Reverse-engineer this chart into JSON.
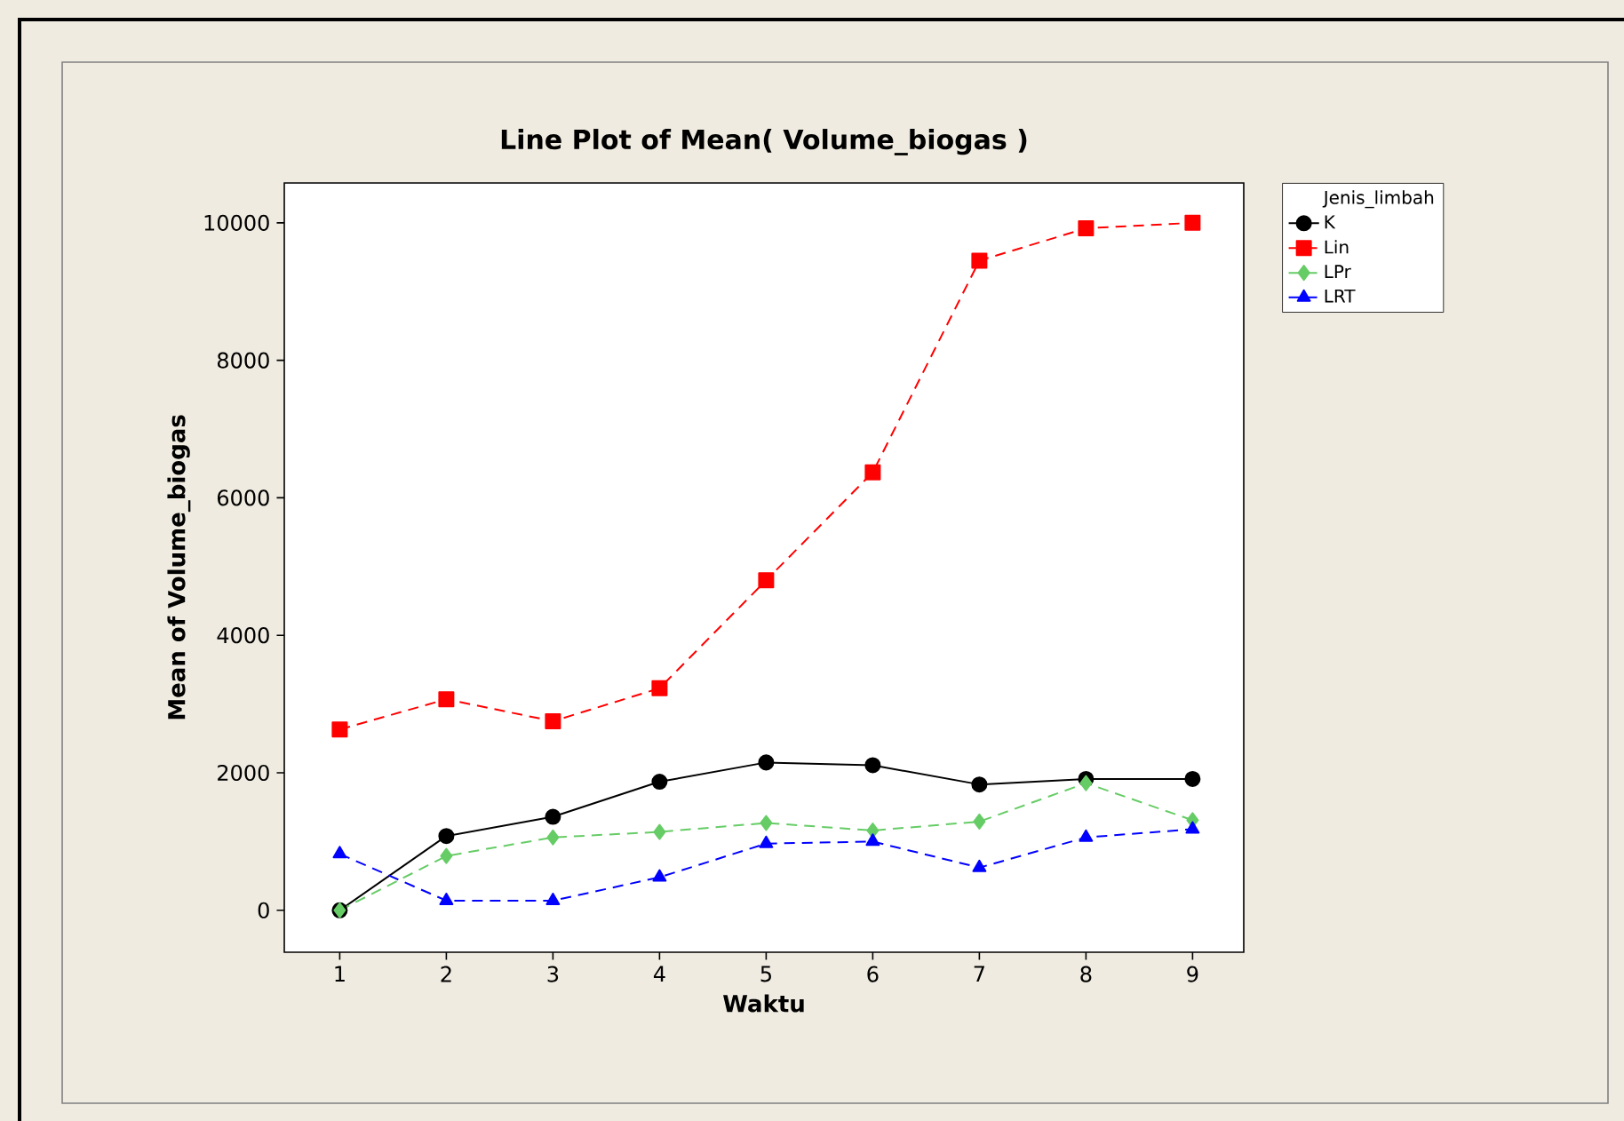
{
  "chart_data": {
    "type": "line",
    "title": "Line Plot of Mean( Volume_biogas )",
    "xlabel": "Waktu",
    "ylabel": "Mean of Volume_biogas",
    "legend_title": "Jenis_limbah",
    "legend": "right",
    "x": [
      1,
      2,
      3,
      4,
      5,
      6,
      7,
      8,
      9
    ],
    "xlim": [
      0.48,
      9.48
    ],
    "xticks": [
      1,
      2,
      3,
      4,
      5,
      6,
      7,
      8,
      9
    ],
    "ylim": [
      -610,
      10580
    ],
    "yticks": [
      0,
      2000,
      4000,
      6000,
      8000,
      10000
    ],
    "grid": false,
    "series": [
      {
        "name": "K",
        "color": "#000000",
        "marker": "circle",
        "line_style": "solid",
        "values": [
          0,
          1080,
          1360,
          1870,
          2150,
          2110,
          1830,
          1910,
          1910
        ]
      },
      {
        "name": "Lin",
        "color": "#ff0000",
        "marker": "square",
        "line_style": "dashed",
        "values": [
          2630,
          3070,
          2750,
          3230,
          4800,
          6370,
          9450,
          9920,
          10000
        ]
      },
      {
        "name": "LPr",
        "color": "#66cc66",
        "marker": "diamond",
        "line_style": "dashed",
        "values": [
          0,
          790,
          1060,
          1140,
          1270,
          1160,
          1290,
          1850,
          1310
        ]
      },
      {
        "name": "LRT",
        "color": "#0000ff",
        "marker": "triangle",
        "line_style": "dashed",
        "values": [
          820,
          140,
          140,
          480,
          970,
          1000,
          620,
          1060,
          1180
        ]
      }
    ]
  }
}
